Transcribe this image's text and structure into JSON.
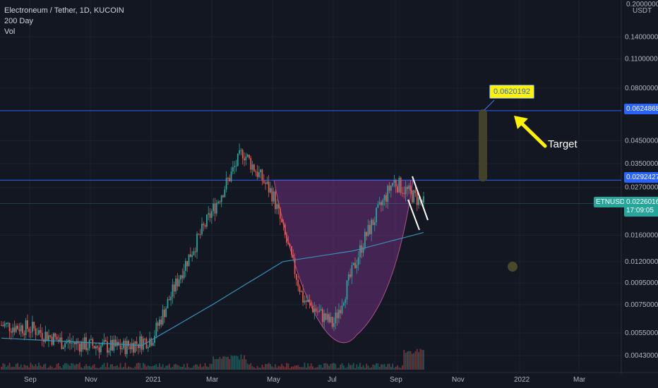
{
  "legend": {
    "title": "Electroneum / Tether, 1D, KUCOIN",
    "ma": "200 Day",
    "vol": "Vol"
  },
  "axis": {
    "currency": "USDT",
    "top_value": "0.2000000",
    "y_ticks": [
      "0.1400000",
      "0.1100000",
      "0.0800000",
      "0.0450000",
      "0.0350000",
      "0.0270000",
      "0.0160000",
      "0.0120000",
      "0.0095000",
      "0.0075000",
      "0.0055000",
      "0.0043000"
    ],
    "x_ticks": [
      "Sep",
      "Nov",
      "2021",
      "Mar",
      "May",
      "Jul",
      "Sep",
      "Nov",
      "2022",
      "Mar"
    ]
  },
  "price_tags": {
    "line1": "0.0624868",
    "line2": "0.0292427",
    "symbol": "ETNUSDT",
    "current": "0.0226016",
    "countdown": "17:09:05"
  },
  "annotations": {
    "callout": "0.0620192",
    "target": "Target"
  },
  "colors": {
    "background": "#131722",
    "up": "#26a69a",
    "down": "#ef5350",
    "ma": "#3a8fb7",
    "level_line": "#2962ff",
    "cup_fill": "#6b2f7a",
    "arrow": "#fff200"
  },
  "chart_data": {
    "type": "line",
    "title": "Electroneum / Tether, 1D, KUCOIN",
    "series": [
      {
        "name": "ETNUSDT",
        "points": [
          [
            "Aug 2020",
            0.006
          ],
          [
            "Sep 2020",
            0.0058
          ],
          [
            "Oct 2020",
            0.005
          ],
          [
            "Nov 2020",
            0.0048
          ],
          [
            "Dec 2020",
            0.0047
          ],
          [
            "Jan 2021",
            0.0052
          ],
          [
            "Feb 2021",
            0.011
          ],
          [
            "Mar 2021",
            0.021
          ],
          [
            "Apr 2021",
            0.04
          ],
          [
            "May 2021",
            0.025
          ],
          [
            "Jun 2021",
            0.008
          ],
          [
            "Jul 2021",
            0.006
          ],
          [
            "Aug 2021",
            0.015
          ],
          [
            "Sep 2021",
            0.029
          ],
          [
            "Sep 2021 end",
            0.0226
          ]
        ]
      },
      {
        "name": "200 Day",
        "points": [
          [
            "Aug 2020",
            0.0052
          ],
          [
            "Nov 2020",
            0.005
          ],
          [
            "Jan 2021",
            0.0048
          ],
          [
            "Mar 2021",
            0.0075
          ],
          [
            "May 2021",
            0.012
          ],
          [
            "Jul 2021",
            0.0135
          ],
          [
            "Sep 2021",
            0.0165
          ]
        ]
      }
    ],
    "levels": [
      0.0624868,
      0.0292427
    ],
    "ylim": [
      0.0038,
      0.2
    ],
    "scale": "log"
  }
}
